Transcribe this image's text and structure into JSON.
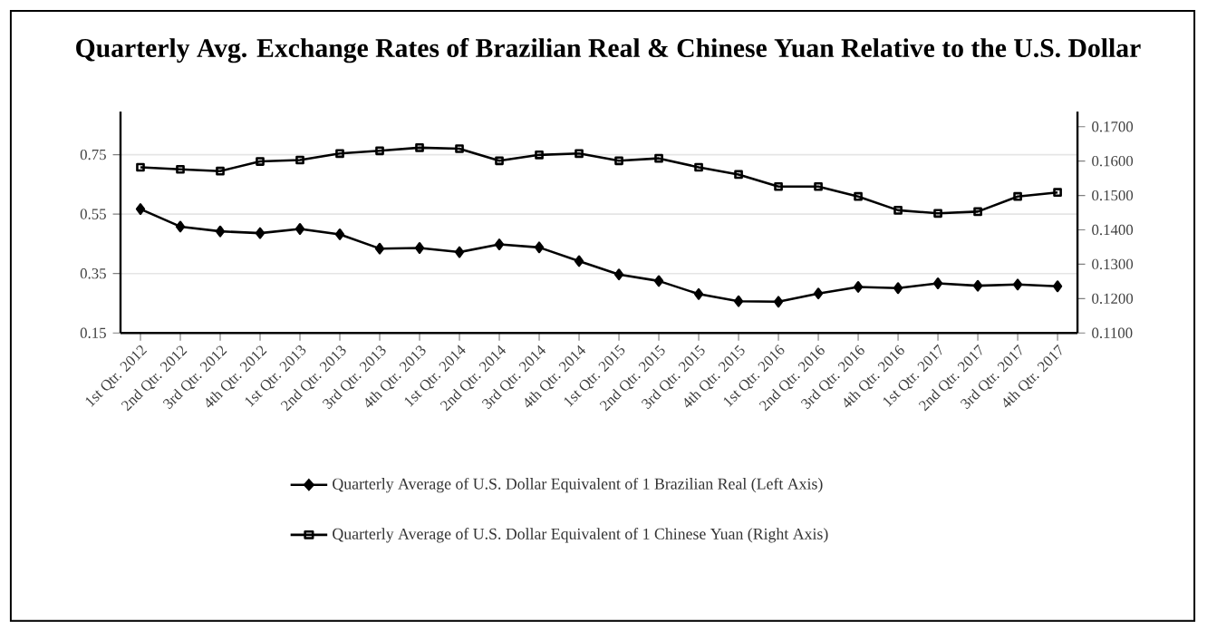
{
  "chart_data": {
    "type": "line",
    "title": "Quarterly Avg. Exchange Rates of Brazilian Real & Chinese Yuan Relative to the U.S. Dollar",
    "categories": [
      "1st Qtr. 2012",
      "2nd Qtr. 2012",
      "3rd Qtr. 2012",
      "4th Qtr. 2012",
      "1st Qtr. 2013",
      "2nd Qtr. 2013",
      "3rd Qtr. 2013",
      "4th Qtr. 2013",
      "1st Qtr. 2014",
      "2nd Qtr. 2014",
      "3rd Qtr. 2014",
      "4th Qtr. 2014",
      "1st Qtr. 2015",
      "2nd Qtr. 2015",
      "3rd Qtr. 2015",
      "4th Qtr. 2015",
      "1st Qtr. 2016",
      "2nd Qtr. 2016",
      "3rd Qtr. 2016",
      "4th Qtr. 2016",
      "1st Qtr. 2017",
      "2nd Qtr. 2017",
      "3rd Qtr. 2017",
      "4th Qtr. 2017"
    ],
    "series": [
      {
        "name": "Quarterly Average of U.S. Dollar Equivalent of 1 Brazilian Real (Left Axis)",
        "color": "#000000",
        "marker": "diamond",
        "values": [
          0.567,
          0.508,
          0.492,
          0.486,
          0.5,
          0.482,
          0.434,
          0.436,
          0.422,
          0.448,
          0.438,
          0.392,
          0.347,
          0.325,
          0.281,
          0.257,
          0.255,
          0.283,
          0.305,
          0.301,
          0.317,
          0.309,
          0.313,
          0.307
        ]
      },
      {
        "name": "Quarterly Average of U.S. Dollar Equivalent of 1 Chinese Yuan (Right Axis)",
        "color": "#000000",
        "marker": "square",
        "axis": "y2",
        "values": [
          0.1582,
          0.1576,
          0.1571,
          0.1599,
          0.1603,
          0.1622,
          0.163,
          0.1639,
          0.1636,
          0.1601,
          0.1618,
          0.1622,
          0.1601,
          0.1608,
          0.1582,
          0.1561,
          0.1526,
          0.1526,
          0.1497,
          0.1457,
          0.1448,
          0.1453,
          0.1497,
          0.1509
        ]
      }
    ],
    "ylim": [
      0.15,
      0.895
    ],
    "yticks": [
      0.15,
      0.35,
      0.55,
      0.75
    ],
    "y2lim": [
      0.11,
      0.1744
    ],
    "y2ticks": [
      {
        "value": 0.11,
        "label": "0.1100"
      },
      {
        "value": 0.12,
        "label": "0.1200"
      },
      {
        "value": 0.13,
        "label": "0.1300"
      },
      {
        "value": 0.14,
        "label": "0.1400"
      },
      {
        "value": 0.15,
        "label": "0.1500"
      },
      {
        "value": 0.16,
        "label": "0.1600"
      },
      {
        "value": 0.17,
        "label": "0.1700"
      }
    ],
    "grid": "y",
    "legend": "bottom",
    "line_style": "solid"
  }
}
